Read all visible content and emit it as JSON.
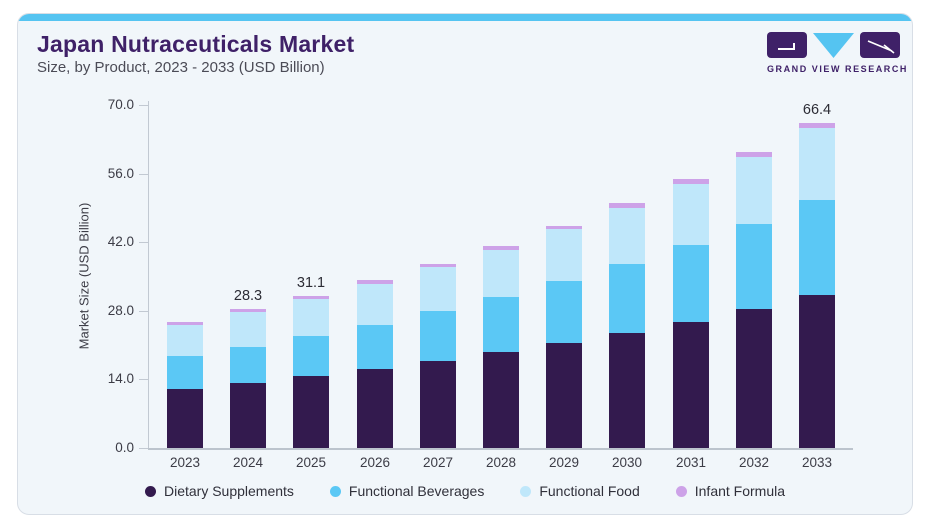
{
  "header": {
    "title": "Japan Nutraceuticals Market",
    "subtitle": "Size, by Product, 2023 - 2033 (USD Billion)"
  },
  "logo": {
    "text": "GRAND VIEW RESEARCH"
  },
  "colors": {
    "card_background": "#f1f6fa",
    "card_border": "#d8dee6",
    "top_strip": "#55c4f1",
    "title": "#3f2168",
    "subtitle": "#4b4b56",
    "axis_text": "#3c3c46",
    "axis_line": "#c2c9d2",
    "dietary_supplements": "#331a4e",
    "functional_beverages": "#5bc8f5",
    "functional_food": "#bfe7fa",
    "infant_formula": "#cda2e8"
  },
  "chart_data": {
    "type": "bar",
    "stacked": true,
    "title": "Japan Nutraceuticals Market",
    "subtitle": "Size, by Product, 2023 - 2033 (USD Billion)",
    "categories": [
      "2023",
      "2024",
      "2025",
      "2026",
      "2027",
      "2028",
      "2029",
      "2030",
      "2031",
      "2032",
      "2033"
    ],
    "series": [
      {
        "name": "Dietary Supplements",
        "color": "#331a4e",
        "values": [
          12.1,
          13.3,
          14.6,
          16.1,
          17.7,
          19.5,
          21.4,
          23.5,
          25.8,
          28.4,
          31.2
        ]
      },
      {
        "name": "Functional Beverages",
        "color": "#5bc8f5",
        "values": [
          6.6,
          7.4,
          8.2,
          9.1,
          10.2,
          11.3,
          12.6,
          14.0,
          15.6,
          17.4,
          19.4
        ]
      },
      {
        "name": "Functional Food",
        "color": "#bfe7fa",
        "values": [
          6.5,
          7.0,
          7.7,
          8.3,
          9.0,
          9.7,
          10.6,
          11.5,
          12.5,
          13.6,
          14.7
        ]
      },
      {
        "name": "Infant Formula",
        "color": "#cda2e8",
        "values": [
          0.5,
          0.6,
          0.6,
          0.7,
          0.7,
          0.8,
          0.8,
          0.9,
          1.0,
          1.0,
          1.1
        ]
      }
    ],
    "totals": [
      25.7,
      28.3,
      31.1,
      34.2,
      37.6,
      41.3,
      45.4,
      49.9,
      54.9,
      60.4,
      66.4
    ],
    "value_labels": {
      "2024": "28.3",
      "2025": "31.1",
      "2033": "66.4"
    },
    "xlabel": "",
    "ylabel": "Market Size (USD Billion)",
    "yticks": [
      0,
      14,
      28,
      42,
      56,
      70
    ],
    "ytick_labels": [
      "0.0",
      "14.0",
      "28.0",
      "42.0",
      "56.0",
      "70.0"
    ],
    "ylim": [
      0,
      70
    ],
    "grid": false,
    "legend_position": "bottom"
  }
}
